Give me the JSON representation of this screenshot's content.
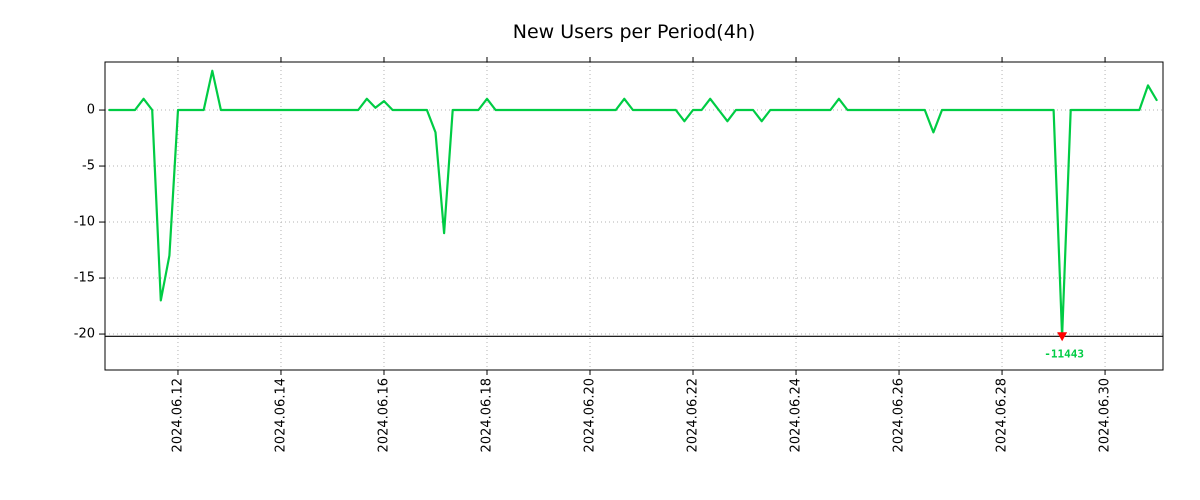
{
  "chart_data": {
    "type": "line",
    "title": "New Users per Period(4h)",
    "line_color": "#00cc44",
    "marker_color": "#ff0000",
    "grid_color": "#b3b3b3",
    "baseline_color": "#000000",
    "legend": "none",
    "grid": "dotted",
    "x_axis_start": "2024-06-10 14:00",
    "x_axis_end": "2024-07-01 03:00",
    "x_start": "2024-06-10 16:00",
    "x_step_hours": 4,
    "x_ticks": [
      "2024.06.12",
      "2024.06.14",
      "2024.06.16",
      "2024.06.18",
      "2024.06.20",
      "2024.06.22",
      "2024.06.24",
      "2024.06.26",
      "2024.06.28",
      "2024.06.30"
    ],
    "y_ticks": [
      {
        "label": "0",
        "value": 0
      },
      {
        "label": "-5",
        "value": -5
      },
      {
        "label": "-10",
        "value": -10
      },
      {
        "label": "-15",
        "value": -15
      },
      {
        "label": "-20",
        "value": -20
      }
    ],
    "ylim": [
      -23.21,
      4.29
    ],
    "baseline_value": -20.2,
    "values": [
      0,
      0,
      0,
      0,
      1,
      0,
      -17,
      -13,
      0,
      0,
      0,
      0,
      3.5,
      0,
      0,
      0,
      0,
      0,
      0,
      0,
      0,
      0,
      0,
      0,
      0,
      0,
      0,
      0,
      0,
      0,
      1,
      0.2,
      0.8,
      0,
      0,
      0,
      0,
      0,
      -2,
      -11,
      0,
      0,
      0,
      0,
      1,
      0,
      0,
      0,
      0,
      0,
      0,
      0,
      0,
      0,
      0,
      0,
      0,
      0,
      0,
      0,
      1,
      0,
      0,
      0,
      0,
      0,
      0,
      -1,
      0,
      0,
      1,
      0,
      -1,
      0,
      0,
      0,
      -1,
      0,
      0,
      0,
      0,
      0,
      0,
      0,
      0,
      1,
      0,
      0,
      0,
      0,
      0,
      0,
      0,
      0,
      0,
      0,
      -2,
      0,
      0,
      0,
      0,
      0,
      0,
      0,
      0,
      0,
      0,
      0,
      0,
      0,
      0,
      -11443,
      0,
      0,
      0,
      0,
      0,
      0,
      0,
      0,
      0,
      2.2,
      0.9
    ],
    "annotation": {
      "text": "-11443",
      "point_index": 111,
      "marker": "red-down-triangle"
    }
  }
}
